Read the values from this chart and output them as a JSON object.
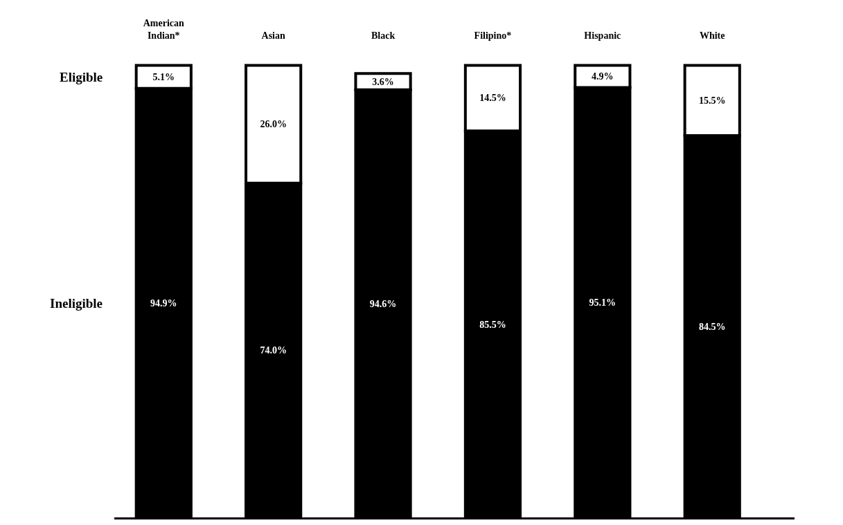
{
  "chart_data": {
    "type": "bar",
    "stacked": true,
    "categories": [
      "American Indian*",
      "Asian",
      "Black",
      "Filipino*",
      "Hispanic",
      "White"
    ],
    "series": [
      {
        "name": "Ineligible",
        "color": "#000000",
        "values": [
          94.9,
          74.0,
          94.6,
          85.5,
          95.1,
          84.5
        ],
        "value_labels": [
          "94.9%",
          "74.0%",
          "94.6%",
          "85.5%",
          "95.1%",
          "84.5%"
        ]
      },
      {
        "name": "Eligible",
        "color": "#ffffff",
        "values": [
          5.1,
          26.0,
          3.6,
          14.5,
          4.9,
          15.5
        ],
        "value_labels": [
          "5.1%",
          "26.0%",
          "3.6%",
          "14.5%",
          "4.9%",
          "15.5%"
        ]
      }
    ]
  }
}
